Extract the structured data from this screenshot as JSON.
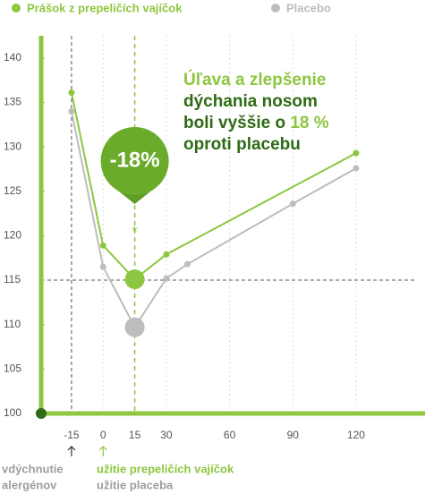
{
  "chart_data": {
    "type": "line",
    "series": [
      {
        "name": "Prášok z prepeličích vajíčok",
        "color": "#8dc63f",
        "x": [
          -15,
          0,
          15,
          30,
          120
        ],
        "values": [
          136.1,
          118.9,
          115.1,
          117.9,
          129.3
        ]
      },
      {
        "name": "Placebo",
        "color": "#bdbdbd",
        "x": [
          -15,
          0,
          15,
          30,
          40,
          90,
          120
        ],
        "values": [
          134.0,
          116.5,
          109.7,
          115.2,
          116.8,
          123.6,
          127.6
        ]
      }
    ],
    "xlim": [
      -29.4,
      152.7
    ],
    "ylim": [
      100,
      142.5
    ],
    "xticks": [
      -15,
      0,
      15,
      30,
      60,
      90,
      120
    ],
    "yticks": [
      100,
      105,
      110,
      115,
      120,
      125,
      130,
      135,
      140
    ],
    "hline": 115,
    "callout": {
      "label": "-18%",
      "marker": "*"
    },
    "annotation": [
      [
        {
          "text": "Úľava a zlepšenie",
          "color": "#8dc63f"
        }
      ],
      [
        {
          "text": "dýchania nosom",
          "color": "#2e6b16"
        }
      ],
      [
        {
          "text": "boli vyššie o ",
          "color": "#2e6b16"
        },
        {
          "text": "18 %",
          "color": "#8dc63f"
        }
      ],
      [
        {
          "text": "oproti placebu",
          "color": "#2e6b16"
        }
      ]
    ],
    "bottom_labels": [
      {
        "lines": [
          "vdýchnutie",
          "alergénov"
        ],
        "color": "#9e9e9e"
      },
      {
        "lines": [
          "užitie prepeličích vajíčok"
        ],
        "color": "#8dc63f"
      },
      {
        "lines": [
          "užitie placeba"
        ],
        "color": "#9e9e9e"
      }
    ]
  }
}
